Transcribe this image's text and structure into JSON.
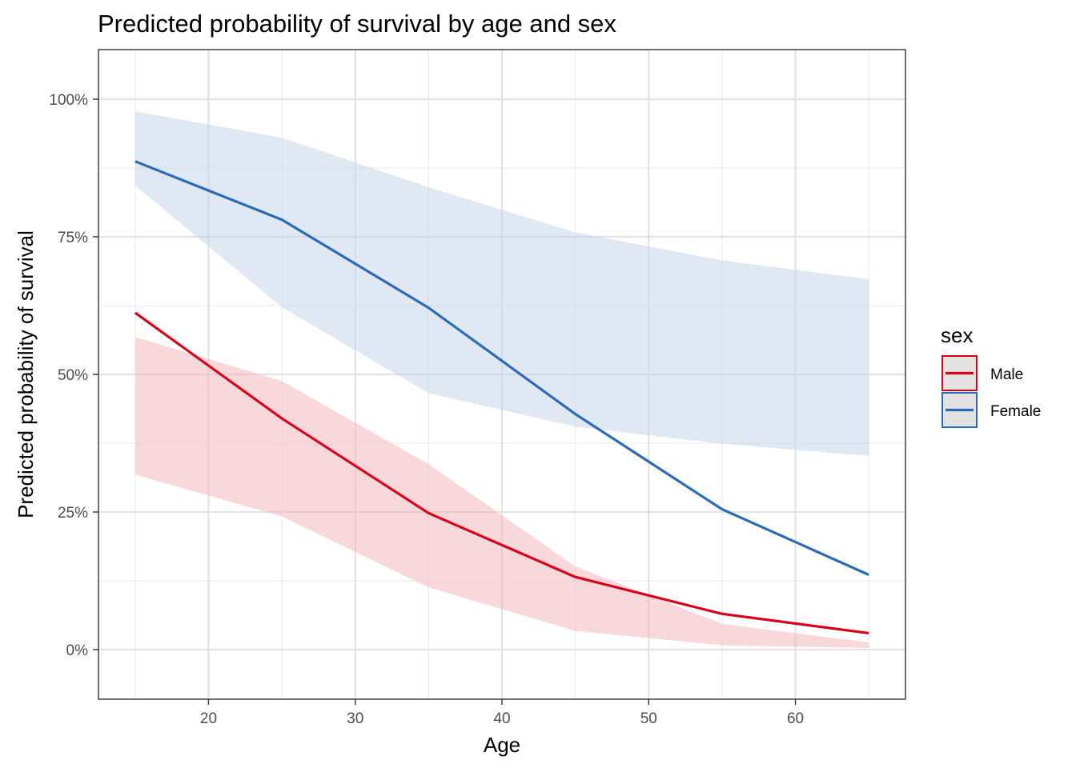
{
  "chart_data": {
    "type": "line",
    "title": "Predicted probability of survival by age and sex",
    "xlabel": "Age",
    "ylabel": "Predicted probability of survival",
    "xlim": [
      12.5,
      67.5
    ],
    "ylim": [
      -0.09,
      1.09
    ],
    "x_ticks": [
      20,
      30,
      40,
      50,
      60
    ],
    "x_tick_labels": [
      "20",
      "30",
      "40",
      "50",
      "60"
    ],
    "y_ticks": [
      0,
      0.25,
      0.5,
      0.75,
      1.0
    ],
    "y_tick_labels": [
      "0%",
      "25%",
      "50%",
      "75%",
      "100%"
    ],
    "grid": true,
    "legend": {
      "title": "sex",
      "placement": "right"
    },
    "x": [
      15,
      25,
      35,
      45,
      55,
      65
    ],
    "series": [
      {
        "name": "Male",
        "color": "#d7001a",
        "ribbon_color": "#f4b8c0",
        "values": [
          0.612,
          0.42,
          0.248,
          0.132,
          0.065,
          0.03
        ],
        "lower": [
          0.318,
          0.242,
          0.113,
          0.034,
          0.008,
          0.003
        ],
        "upper": [
          0.568,
          0.488,
          0.337,
          0.151,
          0.047,
          0.013
        ]
      },
      {
        "name": "Female",
        "color": "#2a6bb5",
        "ribbon_color": "#c6d6ea",
        "values": [
          0.887,
          0.781,
          0.621,
          0.428,
          0.255,
          0.136
        ],
        "lower": [
          0.843,
          0.622,
          0.466,
          0.405,
          0.374,
          0.352
        ],
        "upper": [
          0.978,
          0.93,
          0.84,
          0.758,
          0.707,
          0.673
        ]
      }
    ]
  }
}
